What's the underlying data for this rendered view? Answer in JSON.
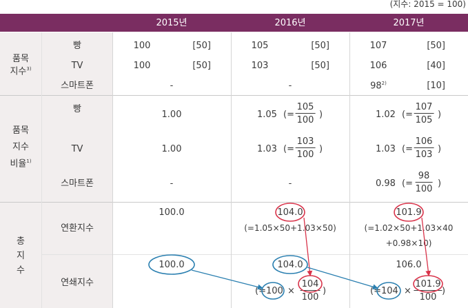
{
  "unit_note": "(지수: 2015 = 100)",
  "header": {
    "y2015": "2015년",
    "y2016": "2016년",
    "y2017": "2017년"
  },
  "group1": {
    "label_l1": "품목",
    "label_l2": "지수",
    "label_sup": "3)",
    "rows": [
      {
        "item": "빵",
        "v2015": "100",
        "w2015": "[50]",
        "v2016": "105",
        "w2016": "[50]",
        "v2017": "107",
        "w2017": "[50]"
      },
      {
        "item": "TV",
        "v2015": "100",
        "w2015": "[50]",
        "v2016": "103",
        "w2016": "[50]",
        "v2017": "106",
        "w2017": "[40]"
      },
      {
        "item": "스마트폰",
        "v2015": "-",
        "v2016": "-",
        "v2017": "98",
        "v2017_sup": "2)",
        "w2017": "[10]"
      }
    ]
  },
  "group2": {
    "label_l1": "품목",
    "label_l2": "지수",
    "label_l3": "비율",
    "label_sup": "1)",
    "rows": [
      {
        "item": "빵",
        "v2015": "1.00",
        "v2016": "1.05",
        "eq2016": "(=",
        "n2016": "105",
        "d2016": "100",
        "v2017": "1.02",
        "eq2017": "(=",
        "n2017": "107",
        "d2017": "105"
      },
      {
        "item": "TV",
        "v2015": "1.00",
        "v2016": "1.03",
        "eq2016": "(=",
        "n2016": "103",
        "d2016": "100",
        "v2017": "1.03",
        "eq2017": "(=",
        "n2017": "106",
        "d2017": "103"
      },
      {
        "item": "스마트폰",
        "v2015": "-",
        "v2016": "-",
        "v2017": "0.98",
        "eq2017": "(=",
        "n2017": "98",
        "d2017": "100"
      }
    ],
    "close_paren": ")"
  },
  "group3": {
    "label_l1": "총",
    "label_l2": "지",
    "label_l3": "수",
    "chain": {
      "item": "연환지수",
      "v2015": "100.0",
      "v2016": "104.0",
      "f2016": "(=1.05×50+1.03×50)",
      "v2017": "101.9",
      "f2017_l1": "(=1.02×50+1.03×40",
      "f2017_l2": "+0.98×10)"
    },
    "linked": {
      "item": "연쇄지수",
      "v2015": "100.0",
      "v2016": "104.0",
      "f2016_open": "(=",
      "f2016_base": "100",
      "f2016_times": "×",
      "f2016_num": "104",
      "f2016_den": "100",
      "f2016_close": ")",
      "v2017": "106.0",
      "f2017_open": "(=",
      "f2017_base": "104",
      "f2017_times": "×",
      "f2017_num": "101.9",
      "f2017_den": "100",
      "f2017_close": ")"
    }
  },
  "colors": {
    "header": "#7a2d61",
    "red_circle": "#d8334a",
    "blue_circle": "#2a7fb0"
  }
}
